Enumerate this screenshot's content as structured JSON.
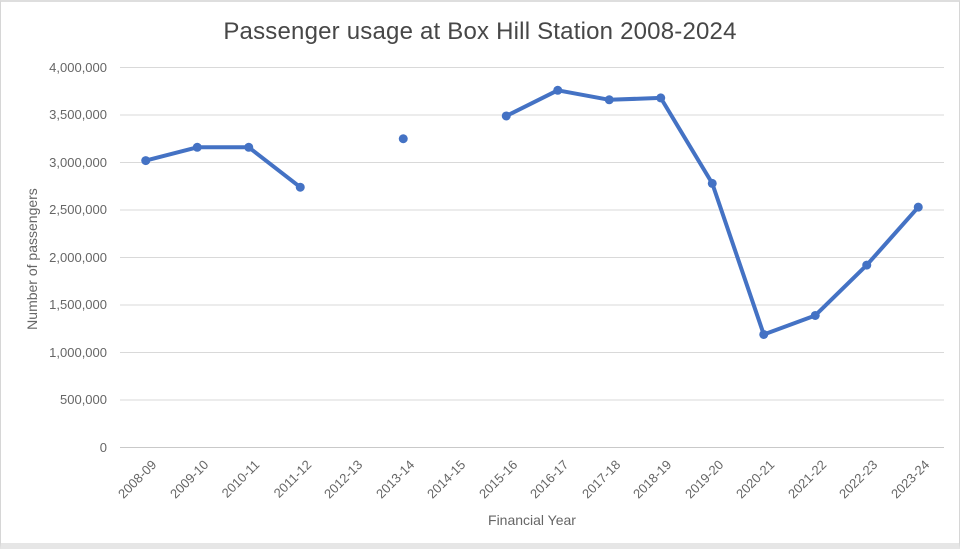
{
  "colors": {
    "line": "#4472C4",
    "grid": "#d9d9d9",
    "axis": "#c9c9c9",
    "title_text": "#474747",
    "tick_text": "#666666"
  },
  "chart_data": {
    "type": "line",
    "title": "Passenger usage at Box Hill Station 2008-2024",
    "xlabel": "Financial Year",
    "ylabel": "Number of passengers",
    "categories": [
      "2008-09",
      "2009-10",
      "2010-11",
      "2011-12",
      "2012-13",
      "2013-14",
      "2014-15",
      "2015-16",
      "2016-17",
      "2017-18",
      "2018-19",
      "2019-20",
      "2020-21",
      "2021-22",
      "2022-23",
      "2023-24"
    ],
    "series": [
      {
        "name": "Number of passengers",
        "values": [
          3020000,
          3160000,
          3160000,
          2740000,
          null,
          3250000,
          null,
          3490000,
          3760000,
          3660000,
          3680000,
          2780000,
          1190000,
          1390000,
          1920000,
          2530000
        ]
      }
    ],
    "ylim": [
      0,
      4000000
    ],
    "ytick_step": 500000,
    "grid": true,
    "legend": "none",
    "marker": "circle",
    "missing_years": [
      "2012-13",
      "2014-15"
    ]
  }
}
